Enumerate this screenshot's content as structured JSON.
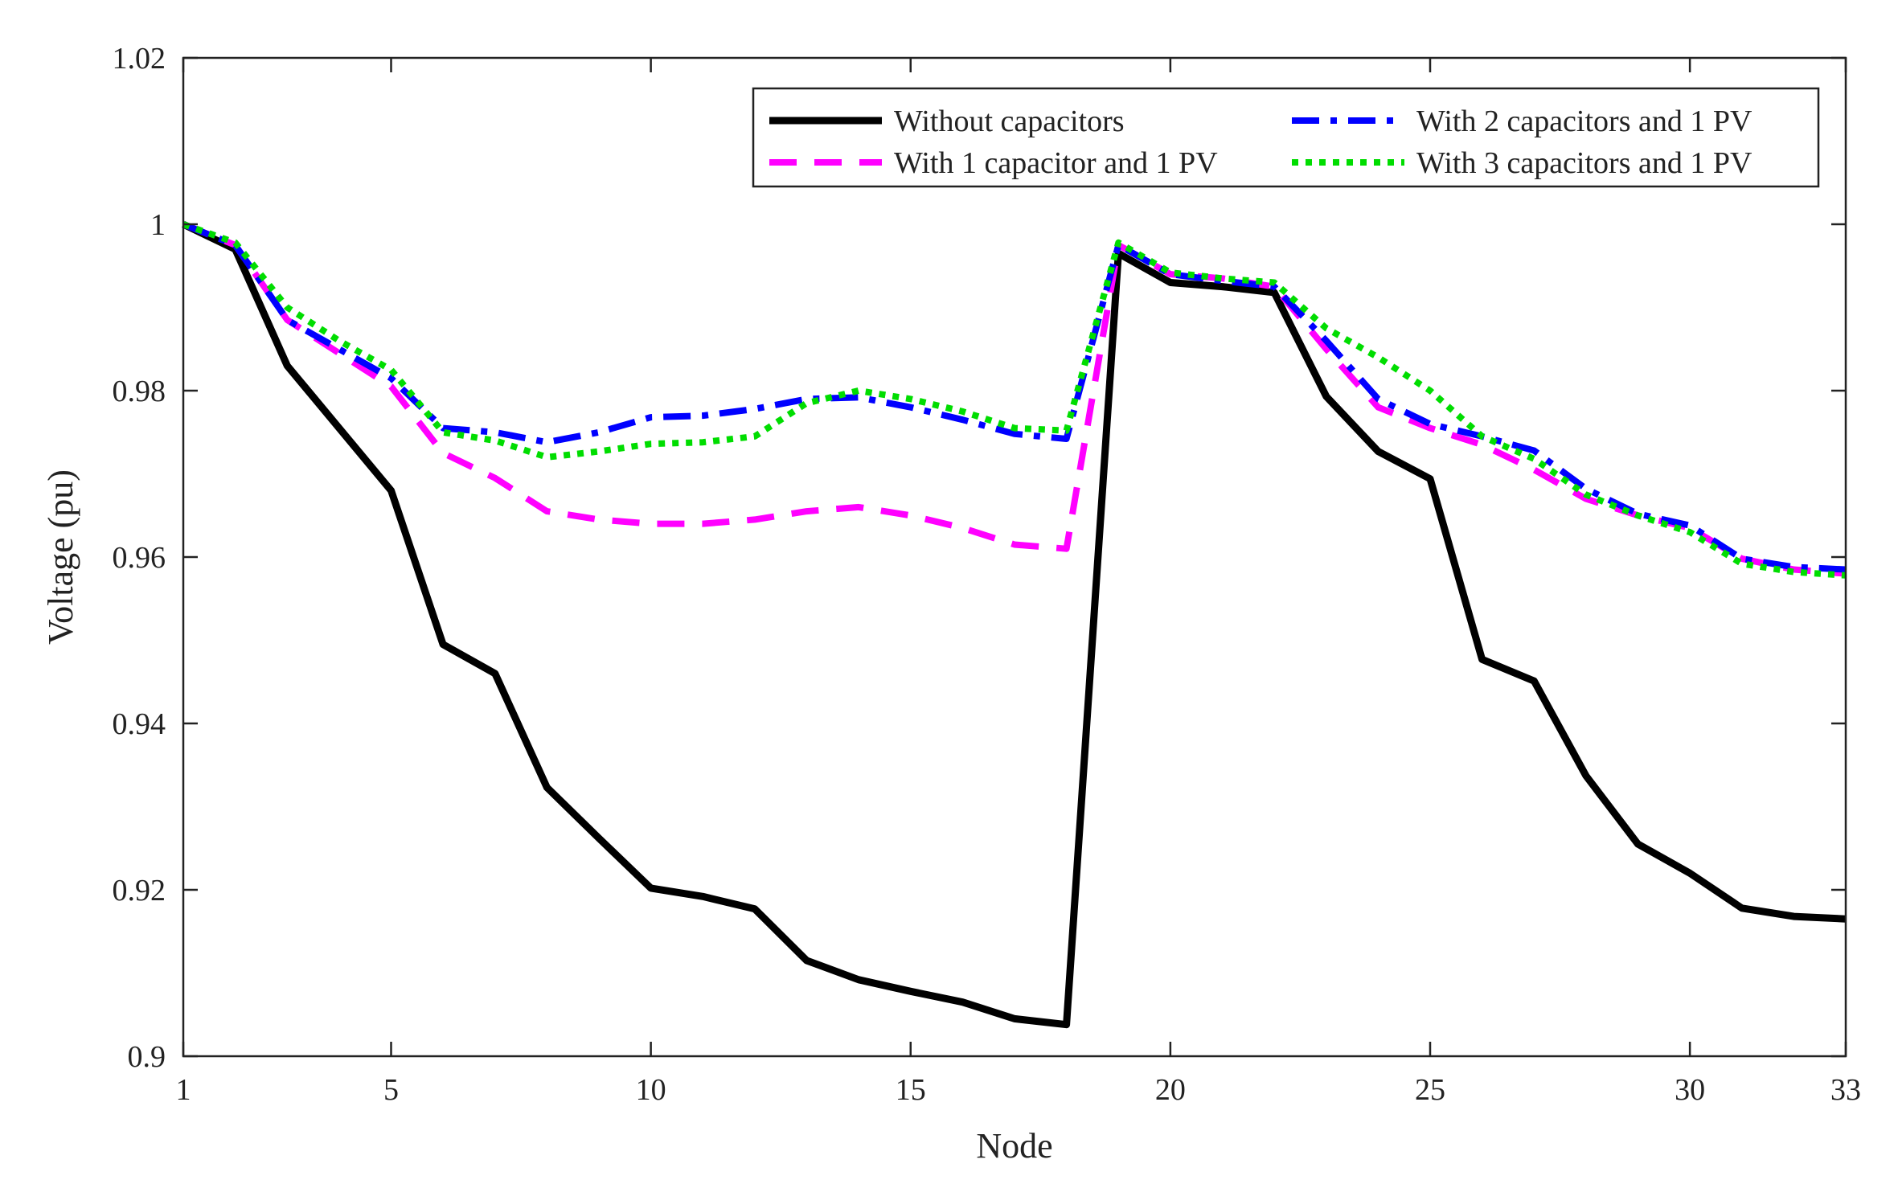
{
  "chart_data": {
    "type": "line",
    "title": "",
    "xlabel": "Node",
    "ylabel": "Voltage (pu)",
    "xlim": [
      1,
      33
    ],
    "ylim": [
      0.9,
      1.02
    ],
    "xticks": [
      1,
      5,
      10,
      15,
      20,
      25,
      30,
      33
    ],
    "xtick_labels": [
      "1",
      "5",
      "10",
      "15",
      "20",
      "25",
      "30",
      "33"
    ],
    "yticks": [
      0.9,
      0.92,
      0.94,
      0.96,
      0.98,
      1.0,
      1.02
    ],
    "ytick_labels": [
      "0.9",
      "0.92",
      "0.94",
      "0.96",
      "0.98",
      "1",
      "1.02"
    ],
    "grid": false,
    "legend_position": "top-right",
    "x": [
      1,
      2,
      3,
      4,
      5,
      6,
      7,
      8,
      9,
      10,
      11,
      12,
      13,
      14,
      15,
      16,
      17,
      18,
      19,
      20,
      21,
      22,
      23,
      24,
      25,
      26,
      27,
      28,
      29,
      30,
      31,
      32,
      33
    ],
    "series": [
      {
        "name": "Without capacitors",
        "color": "#000000",
        "style": "solid",
        "values": [
          1.0,
          0.997,
          0.983,
          0.9755,
          0.968,
          0.9495,
          0.946,
          0.9323,
          0.9262,
          0.9202,
          0.9192,
          0.9177,
          0.9115,
          0.9092,
          0.9078,
          0.9065,
          0.9045,
          0.9038,
          0.9965,
          0.993,
          0.9925,
          0.9918,
          0.9793,
          0.9727,
          0.9694,
          0.9477,
          0.9451,
          0.9337,
          0.9255,
          0.922,
          0.9178,
          0.9168,
          0.9165
        ]
      },
      {
        "name": "With 1 capacitor and 1 PV",
        "color": "#ff00ff",
        "style": "dashed",
        "values": [
          1.0,
          0.9975,
          0.9885,
          0.9845,
          0.9805,
          0.9725,
          0.9695,
          0.9655,
          0.9645,
          0.964,
          0.964,
          0.9645,
          0.9655,
          0.966,
          0.965,
          0.9635,
          0.9615,
          0.961,
          0.9975,
          0.994,
          0.9935,
          0.9925,
          0.985,
          0.978,
          0.9755,
          0.9735,
          0.9705,
          0.967,
          0.965,
          0.9635,
          0.9598,
          0.9585,
          0.958
        ]
      },
      {
        "name": "With 2 capacitors and 1 PV",
        "color": "#0000ff",
        "style": "dash-dot",
        "values": [
          1.0,
          0.9975,
          0.9885,
          0.985,
          0.9815,
          0.9755,
          0.975,
          0.9738,
          0.975,
          0.9768,
          0.977,
          0.9778,
          0.979,
          0.9792,
          0.978,
          0.9765,
          0.9748,
          0.9742,
          0.9975,
          0.994,
          0.9932,
          0.9925,
          0.986,
          0.979,
          0.976,
          0.9745,
          0.9728,
          0.9682,
          0.9652,
          0.9638,
          0.9598,
          0.9588,
          0.9585
        ]
      },
      {
        "name": "With 3 capacitors and 1 PV",
        "color": "#00dd00",
        "style": "dotted",
        "values": [
          1.0,
          0.9978,
          0.99,
          0.986,
          0.9825,
          0.975,
          0.974,
          0.972,
          0.9727,
          0.9736,
          0.9738,
          0.9745,
          0.9785,
          0.98,
          0.979,
          0.9775,
          0.9755,
          0.9752,
          0.9978,
          0.9942,
          0.9935,
          0.993,
          0.9875,
          0.984,
          0.98,
          0.9745,
          0.9718,
          0.9675,
          0.965,
          0.963,
          0.9592,
          0.9582,
          0.9578
        ]
      }
    ]
  }
}
